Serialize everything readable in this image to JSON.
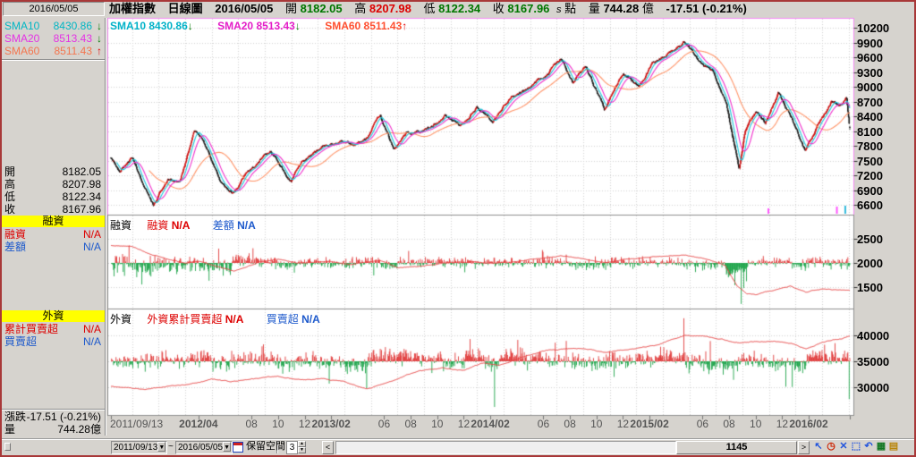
{
  "header": {
    "date_box": "2016/05/05",
    "title": "加權指數",
    "chart_type": "日線圖",
    "date": "2016/05/05",
    "open_label": "開",
    "open": "8182.05",
    "high_label": "高",
    "high": "8207.98",
    "low_label": "低",
    "low": "8122.34",
    "close_label": "收",
    "close": "8167.96",
    "s_mark": "s",
    "point_label": "點",
    "vol_label": "量",
    "vol": "744.28",
    "vol_unit": "億",
    "change": "-17.51 (-0.21%)"
  },
  "sidebar": {
    "sma": [
      {
        "label": "SMA10",
        "value": "8430.86",
        "arrow": "↓",
        "color": "#00b6c4",
        "arrow_color": "#007700"
      },
      {
        "label": "SMA20",
        "value": "8513.43",
        "arrow": "↓",
        "color": "#e433e4",
        "arrow_color": "#007700"
      },
      {
        "label": "SMA60",
        "value": "8511.43",
        "arrow": "↑",
        "color": "#f4764f",
        "arrow_color": "#e00000"
      }
    ],
    "ohlc": [
      {
        "label": "開",
        "value": "8182.05"
      },
      {
        "label": "高",
        "value": "8207.98"
      },
      {
        "label": "低",
        "value": "8122.34"
      },
      {
        "label": "收",
        "value": "8167.96"
      }
    ],
    "margin_section": {
      "header": "融資",
      "rows": [
        {
          "label": "融資",
          "value": "N/A",
          "color": "#dd0000"
        },
        {
          "label": "差額",
          "value": "N/A",
          "color": "#1e5acc"
        }
      ]
    },
    "foreign_section": {
      "header": "外資",
      "rows": [
        {
          "label": "累計買賣超",
          "value": "N/A",
          "color": "#dd0000"
        },
        {
          "label": "買賣超",
          "value": "N/A",
          "color": "#1e5acc"
        }
      ]
    },
    "change_rows": [
      {
        "label": "漲跌",
        "value": "-17.51 (-0.21%)"
      },
      {
        "label": "量",
        "value": "744.28億"
      }
    ]
  },
  "legend": [
    {
      "label": "SMA10",
      "value": "8430.86",
      "arrow": "↓",
      "color": "#00b2c8",
      "arrow_color": "#007700"
    },
    {
      "label": "SMA20",
      "value": "8513.43",
      "arrow": "↓",
      "color": "#e41ec8",
      "arrow_color": "#007700"
    },
    {
      "label": "SMA60",
      "value": "8511.43",
      "arrow": "↑",
      "color": "#ff5030",
      "arrow_color": "#e00000"
    }
  ],
  "panels": {
    "middle": {
      "name": "融資",
      "s1_label": "融資",
      "s1_value": "N/A",
      "s2_label": "差額",
      "s2_value": "N/A"
    },
    "bottom": {
      "name": "外資",
      "s1_label": "外資累計買賣超",
      "s1_value": "N/A",
      "s2_label": "買賣超",
      "s2_value": "N/A"
    }
  },
  "statusbar": {
    "from_date": "2011/09/13",
    "separator": "~",
    "to_date": "2016/05/05",
    "reserve_label": "保留空間",
    "reserve_value": "3",
    "prev_arrow": "<",
    "next_arrow": ">",
    "scroll_count": "1145",
    "tool_icons": [
      {
        "name": "pointer-icon",
        "glyph": "↖",
        "color": "#2255dd"
      },
      {
        "name": "clock-icon",
        "glyph": "◷",
        "color": "#cc2200"
      },
      {
        "name": "crosshair-icon",
        "glyph": "✕",
        "color": "#2255dd"
      },
      {
        "name": "fit-frame-icon",
        "glyph": "⬚",
        "color": "#2255dd"
      },
      {
        "name": "undo-icon",
        "glyph": "↶",
        "color": "#2255dd"
      },
      {
        "name": "bar-chart-icon",
        "glyph": "▦",
        "color": "#117722"
      },
      {
        "name": "clipboard-icon",
        "glyph": "▤",
        "color": "#b8860b"
      }
    ]
  },
  "chart_data": {
    "type": "candlestick",
    "title": "加權指數 日線圖 (TAIEX daily)",
    "x_axis": {
      "start": "2011/09/13",
      "end": "2016/05/05",
      "days": 1145,
      "months_total": 55.7,
      "ticks": [
        {
          "label": "2011/09/13",
          "mo": 0,
          "bold": false
        },
        {
          "label": "2012/04",
          "mo": 6.6,
          "bold": true
        },
        {
          "label": "08",
          "mo": 10.6,
          "bold": false
        },
        {
          "label": "10",
          "mo": 12.6,
          "bold": false
        },
        {
          "label": "12",
          "mo": 14.6,
          "bold": false
        },
        {
          "label": "2013/02",
          "mo": 16.6,
          "bold": true
        },
        {
          "label": "06",
          "mo": 20.6,
          "bold": false
        },
        {
          "label": "08",
          "mo": 22.6,
          "bold": false
        },
        {
          "label": "10",
          "mo": 24.6,
          "bold": false
        },
        {
          "label": "12",
          "mo": 26.6,
          "bold": false
        },
        {
          "label": "2014/02",
          "mo": 28.6,
          "bold": true
        },
        {
          "label": "06",
          "mo": 32.6,
          "bold": false
        },
        {
          "label": "08",
          "mo": 34.6,
          "bold": false
        },
        {
          "label": "10",
          "mo": 36.6,
          "bold": false
        },
        {
          "label": "12",
          "mo": 38.6,
          "bold": false
        },
        {
          "label": "2015/02",
          "mo": 40.6,
          "bold": true
        },
        {
          "label": "06",
          "mo": 44.6,
          "bold": false
        },
        {
          "label": "08",
          "mo": 46.6,
          "bold": false
        },
        {
          "label": "10",
          "mo": 48.6,
          "bold": false
        },
        {
          "label": "12",
          "mo": 50.6,
          "bold": false
        },
        {
          "label": "2016/02",
          "mo": 52.6,
          "bold": true
        }
      ]
    },
    "price_panel": {
      "ylim": [
        6450,
        10350
      ],
      "yticks": [
        10200,
        9900,
        9600,
        9300,
        9000,
        8700,
        8400,
        8100,
        7800,
        7500,
        7200,
        6900,
        6600
      ],
      "sma_windows": [
        10,
        20,
        60
      ],
      "last_candle": {
        "open": 8182.05,
        "high": 8207.98,
        "low": 8122.34,
        "close": 8167.96
      },
      "trend_keyframes": [
        [
          0,
          7550
        ],
        [
          0.7,
          7250
        ],
        [
          1.6,
          7620
        ],
        [
          2.3,
          7200
        ],
        [
          3.2,
          6650
        ],
        [
          4.3,
          7180
        ],
        [
          5.2,
          7120
        ],
        [
          6.3,
          8150
        ],
        [
          7.0,
          7880
        ],
        [
          7.6,
          7480
        ],
        [
          8.3,
          7070
        ],
        [
          9.3,
          6890
        ],
        [
          10.3,
          7320
        ],
        [
          11.2,
          7500
        ],
        [
          12.0,
          7715
        ],
        [
          12.8,
          7420
        ],
        [
          13.6,
          7100
        ],
        [
          14.5,
          7530
        ],
        [
          16.0,
          7790
        ],
        [
          17.3,
          7930
        ],
        [
          18.3,
          7780
        ],
        [
          19.2,
          7900
        ],
        [
          20.3,
          8395
        ],
        [
          21.3,
          7680
        ],
        [
          22.3,
          8050
        ],
        [
          23.3,
          8110
        ],
        [
          24.2,
          8220
        ],
        [
          25.2,
          8450
        ],
        [
          26.3,
          8200
        ],
        [
          27.6,
          8620
        ],
        [
          28.8,
          8340
        ],
        [
          30.2,
          8850
        ],
        [
          31.6,
          9000
        ],
        [
          33.0,
          9260
        ],
        [
          33.9,
          9590
        ],
        [
          34.8,
          9100
        ],
        [
          35.8,
          9450
        ],
        [
          37.2,
          8520
        ],
        [
          38.6,
          9310
        ],
        [
          39.8,
          9000
        ],
        [
          40.8,
          9500
        ],
        [
          41.8,
          9620
        ],
        [
          43.2,
          9990
        ],
        [
          44.3,
          9560
        ],
        [
          45.3,
          9400
        ],
        [
          46.4,
          8680
        ],
        [
          47.35,
          7330
        ],
        [
          47.8,
          8100
        ],
        [
          48.6,
          8480
        ],
        [
          49.3,
          8270
        ],
        [
          50.3,
          8870
        ],
        [
          51.2,
          8380
        ],
        [
          52.35,
          7680
        ],
        [
          53.3,
          8180
        ],
        [
          54.3,
          8680
        ],
        [
          55.0,
          8650
        ],
        [
          55.45,
          8780
        ],
        [
          55.7,
          8170
        ]
      ],
      "markers": [
        [
          1018,
          "#ff55ff",
          6
        ],
        [
          1124,
          "#ff55ff",
          8
        ],
        [
          1137,
          "#33bbdd",
          9
        ]
      ]
    },
    "margin_panel": {
      "yticks": [
        2500,
        2000,
        1500
      ],
      "baseline": 2000,
      "line_keyframes": [
        [
          0,
          2360
        ],
        [
          1.6,
          2345
        ],
        [
          3.0,
          2180
        ],
        [
          4.6,
          2050
        ],
        [
          5.6,
          1995
        ],
        [
          6.6,
          2030
        ],
        [
          8.0,
          1915
        ],
        [
          9.3,
          1830
        ],
        [
          11.0,
          2000
        ],
        [
          12.6,
          2080
        ],
        [
          14.0,
          2010
        ],
        [
          16.0,
          2045
        ],
        [
          18.0,
          1975
        ],
        [
          20.3,
          2045
        ],
        [
          21.6,
          1890
        ],
        [
          23.0,
          1920
        ],
        [
          25.0,
          1990
        ],
        [
          27.0,
          2020
        ],
        [
          29.0,
          1985
        ],
        [
          31.0,
          2060
        ],
        [
          33.9,
          2145
        ],
        [
          35.6,
          2085
        ],
        [
          37.3,
          2000
        ],
        [
          39.0,
          2080
        ],
        [
          41.0,
          2115
        ],
        [
          43.3,
          2160
        ],
        [
          45.0,
          2075
        ],
        [
          46.3,
          1945
        ],
        [
          47.2,
          1520
        ],
        [
          47.9,
          1360
        ],
        [
          48.6,
          1335
        ],
        [
          50.0,
          1445
        ],
        [
          51.2,
          1520
        ],
        [
          52.4,
          1400
        ],
        [
          53.6,
          1455
        ],
        [
          55.0,
          1440
        ],
        [
          55.7,
          1420
        ]
      ],
      "bar_spikes": [
        [
          47.5,
          -850
        ],
        [
          47.7,
          -520
        ],
        [
          3.0,
          -280
        ],
        [
          9.0,
          -250
        ]
      ]
    },
    "foreign_panel": {
      "yticks": [
        40000,
        35000,
        30000
      ],
      "baseline": 35000,
      "line_keyframes": [
        [
          0,
          30200
        ],
        [
          1.0,
          29800
        ],
        [
          2.6,
          29580
        ],
        [
          4.0,
          30000
        ],
        [
          6.0,
          30800
        ],
        [
          7.6,
          31500
        ],
        [
          9.0,
          31050
        ],
        [
          11.0,
          31800
        ],
        [
          12.6,
          32050
        ],
        [
          14.0,
          31400
        ],
        [
          16.0,
          31600
        ],
        [
          17.6,
          31000
        ],
        [
          19.3,
          29600
        ],
        [
          21.0,
          31200
        ],
        [
          23.0,
          33000
        ],
        [
          25.0,
          33600
        ],
        [
          26.6,
          33300
        ],
        [
          28.0,
          34600
        ],
        [
          29.3,
          34200
        ],
        [
          31.0,
          35800
        ],
        [
          33.0,
          37200
        ],
        [
          34.6,
          37600
        ],
        [
          36.0,
          37350
        ],
        [
          37.3,
          36600
        ],
        [
          39.0,
          37400
        ],
        [
          41.0,
          38200
        ],
        [
          43.3,
          40100
        ],
        [
          44.6,
          39850
        ],
        [
          46.0,
          39300
        ],
        [
          47.4,
          38500
        ],
        [
          48.6,
          38800
        ],
        [
          50.0,
          38900
        ],
        [
          51.3,
          38400
        ],
        [
          52.4,
          37300
        ],
        [
          53.6,
          38600
        ],
        [
          55.0,
          39400
        ],
        [
          55.7,
          39800
        ]
      ],
      "bar_spikes": [
        [
          19.3,
          -5200
        ],
        [
          28.9,
          -8800
        ],
        [
          33.5,
          3600
        ],
        [
          43.2,
          8300
        ],
        [
          45.2,
          3900
        ],
        [
          50.9,
          -4900
        ],
        [
          53.8,
          3200
        ],
        [
          54.6,
          3500
        ],
        [
          55.65,
          -7300
        ]
      ]
    },
    "colors": {
      "up_candle": "#cc1111",
      "down_candle": "#1c1c1c",
      "sma10": "#18c8dc",
      "sma20": "#f030cc",
      "sma60": "#ff9468",
      "panel_line": "#e84040",
      "bar_up": "#dd2222",
      "bar_down": "#009933",
      "main_border": "#f48cf4",
      "sub_border": "#909090",
      "grid": "#d4d4d4",
      "plot_bg": "#ffffff"
    }
  }
}
